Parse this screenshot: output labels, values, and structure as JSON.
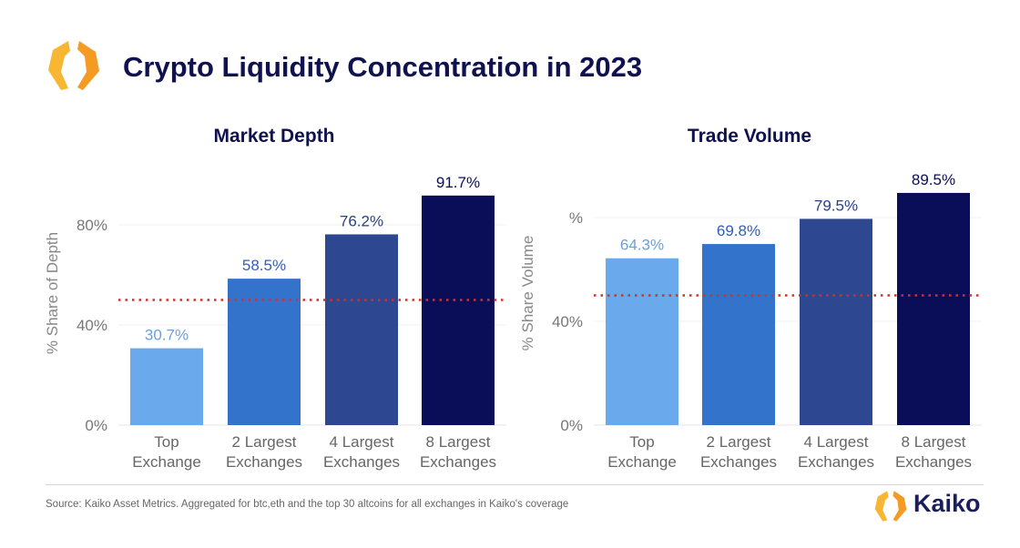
{
  "title": "Crypto Liquidity Concentration in 2023",
  "source": "Source: Kaiko Asset Metrics. Aggregated for btc,eth and the top 30 altcoins for all exchanges in Kaiko's coverage",
  "brand": "Kaiko",
  "colors": {
    "accent": "#f6a623",
    "title": "#10124f",
    "reference_line": "#d32f2f"
  },
  "chart_data": [
    {
      "type": "bar",
      "title": "Market Depth",
      "ylabel": "% Share of Depth",
      "categories": [
        [
          "Top",
          "Exchange"
        ],
        [
          "2 Largest",
          "Exchanges"
        ],
        [
          "4 Largest",
          "Exchanges"
        ],
        [
          "8 Largest",
          "Exchanges"
        ]
      ],
      "values": [
        30.7,
        58.5,
        76.2,
        91.7
      ],
      "data_labels": [
        "30.7%",
        "58.5%",
        "76.2%",
        "91.7%"
      ],
      "bar_colors": [
        "#6aa9ec",
        "#3373cc",
        "#2e4791",
        "#0a0d57"
      ],
      "label_colors": [
        "#6b9fdc",
        "#3060b5",
        "#2a3f85",
        "#0a0d57"
      ],
      "yticks": [
        0,
        40,
        80
      ],
      "ytick_labels": [
        "0%",
        "40%",
        "80%"
      ],
      "ylim": [
        0,
        100
      ],
      "reference_line": 50,
      "grid": true
    },
    {
      "type": "bar",
      "title": "Trade Volume",
      "ylabel": "% Share Volume",
      "categories": [
        [
          "Top",
          "Exchange"
        ],
        [
          "2 Largest",
          "Exchanges"
        ],
        [
          "4 Largest",
          "Exchanges"
        ],
        [
          "8 Largest",
          "Exchanges"
        ]
      ],
      "values": [
        64.3,
        69.8,
        79.5,
        89.5
      ],
      "data_labels": [
        "64.3%",
        "69.8%",
        "79.5%",
        "89.5%"
      ],
      "bar_colors": [
        "#6aa9ec",
        "#3373cc",
        "#2e4791",
        "#0a0d57"
      ],
      "label_colors": [
        "#6b9fdc",
        "#3060b5",
        "#2a3f85",
        "#0a0d57"
      ],
      "yticks": [
        0,
        40,
        80
      ],
      "ytick_labels": [
        "0%",
        "40%",
        "%"
      ],
      "ylim": [
        0,
        100
      ],
      "reference_line": 50,
      "grid": true
    }
  ]
}
